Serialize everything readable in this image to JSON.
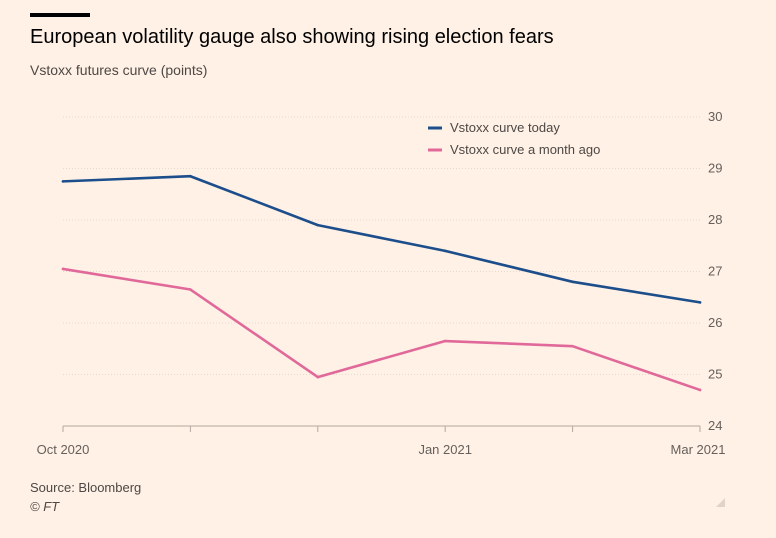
{
  "header": {
    "title": "European volatility gauge also showing rising election fears",
    "subtitle": "Vstoxx futures curve (points)"
  },
  "footer": {
    "source": "Source: Bloomberg",
    "credit": "© FT"
  },
  "colors": {
    "background": "#fff1e5",
    "today": "#1c4e8c",
    "month_ago": "#e0699a",
    "grid": "#e6d9ce",
    "axis": "#b3a9a0"
  },
  "chart_data": {
    "type": "line",
    "title": "European volatility gauge also showing rising election fears",
    "ylabel": "Vstoxx futures curve (points)",
    "xlabel": "",
    "x_index": [
      0,
      1,
      2,
      3,
      4,
      5
    ],
    "x_tick_labels": [
      {
        "index": 0,
        "label": "Oct 2020"
      },
      {
        "index": 3,
        "label": "Jan 2021"
      },
      {
        "index": 5,
        "label": "Mar 2021"
      }
    ],
    "ylim": [
      24,
      30
    ],
    "y_ticks": [
      24,
      25,
      26,
      27,
      28,
      29,
      30
    ],
    "grid": true,
    "legend_position": "top-center",
    "series": [
      {
        "name": "Vstoxx curve today",
        "color": "#1c4e8c",
        "values": [
          28.75,
          28.85,
          27.9,
          27.4,
          26.8,
          26.4
        ]
      },
      {
        "name": "Vstoxx curve a month ago",
        "color": "#e0699a",
        "values": [
          27.05,
          26.65,
          24.95,
          25.65,
          25.55,
          24.7
        ]
      }
    ]
  }
}
